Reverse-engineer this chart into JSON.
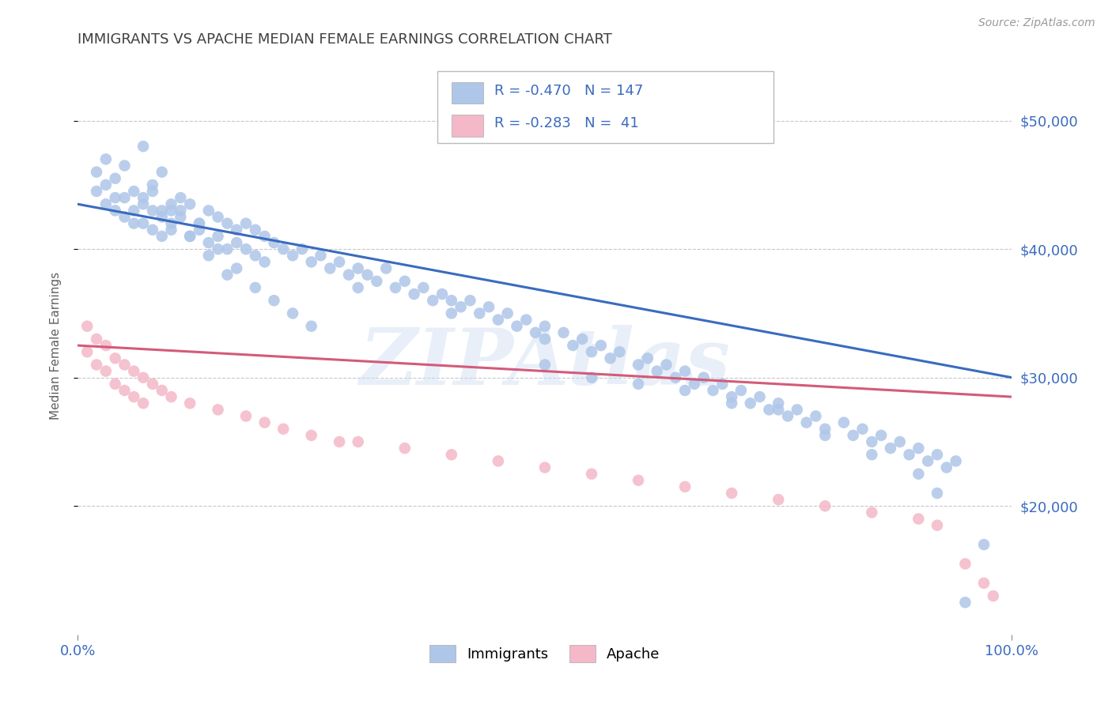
{
  "title": "IMMIGRANTS VS APACHE MEDIAN FEMALE EARNINGS CORRELATION CHART",
  "source": "Source: ZipAtlas.com",
  "ylabel": "Median Female Earnings",
  "xlim": [
    0,
    1.0
  ],
  "ylim": [
    10000,
    55000
  ],
  "yticks": [
    20000,
    30000,
    40000,
    50000
  ],
  "ytick_labels": [
    "$20,000",
    "$30,000",
    "$40,000",
    "$50,000"
  ],
  "xtick_labels": [
    "0.0%",
    "100.0%"
  ],
  "legend_labels": [
    "Immigrants",
    "Apache"
  ],
  "blue_R": -0.47,
  "blue_N": 147,
  "pink_R": -0.283,
  "pink_N": 41,
  "blue_color": "#aec6e8",
  "pink_color": "#f4b8c8",
  "blue_line_color": "#3a6bbf",
  "pink_line_color": "#d45a7a",
  "watermark": "ZIPAtlas",
  "background_color": "#ffffff",
  "grid_color": "#c8c8c8",
  "title_color": "#404040",
  "axis_label_color": "#606060",
  "tick_label_color_blue": "#3a6bbf",
  "blue_scatter_x": [
    0.02,
    0.02,
    0.03,
    0.03,
    0.03,
    0.04,
    0.04,
    0.04,
    0.05,
    0.05,
    0.05,
    0.06,
    0.06,
    0.06,
    0.07,
    0.07,
    0.07,
    0.08,
    0.08,
    0.08,
    0.09,
    0.09,
    0.09,
    0.1,
    0.1,
    0.1,
    0.11,
    0.11,
    0.12,
    0.12,
    0.13,
    0.13,
    0.14,
    0.14,
    0.15,
    0.15,
    0.16,
    0.16,
    0.17,
    0.17,
    0.18,
    0.18,
    0.19,
    0.19,
    0.2,
    0.2,
    0.21,
    0.22,
    0.23,
    0.24,
    0.25,
    0.26,
    0.27,
    0.28,
    0.29,
    0.3,
    0.3,
    0.31,
    0.32,
    0.33,
    0.34,
    0.35,
    0.36,
    0.37,
    0.38,
    0.39,
    0.4,
    0.4,
    0.41,
    0.42,
    0.43,
    0.44,
    0.45,
    0.46,
    0.47,
    0.48,
    0.49,
    0.5,
    0.5,
    0.52,
    0.53,
    0.54,
    0.55,
    0.56,
    0.57,
    0.58,
    0.6,
    0.61,
    0.62,
    0.63,
    0.64,
    0.65,
    0.66,
    0.67,
    0.68,
    0.69,
    0.7,
    0.71,
    0.72,
    0.73,
    0.74,
    0.75,
    0.76,
    0.77,
    0.78,
    0.79,
    0.8,
    0.82,
    0.83,
    0.84,
    0.85,
    0.86,
    0.87,
    0.88,
    0.89,
    0.9,
    0.91,
    0.92,
    0.93,
    0.94,
    0.07,
    0.09,
    0.11,
    0.13,
    0.15,
    0.17,
    0.19,
    0.21,
    0.23,
    0.25,
    0.08,
    0.1,
    0.12,
    0.14,
    0.16,
    0.5,
    0.55,
    0.6,
    0.65,
    0.7,
    0.75,
    0.8,
    0.85,
    0.9,
    0.92,
    0.95,
    0.97
  ],
  "blue_scatter_y": [
    44500,
    46000,
    43500,
    45000,
    47000,
    44000,
    45500,
    43000,
    42500,
    44000,
    46500,
    43000,
    44500,
    42000,
    43500,
    42000,
    44000,
    43000,
    41500,
    44500,
    42500,
    43000,
    41000,
    43500,
    42000,
    41500,
    43000,
    42500,
    41000,
    43500,
    42000,
    41500,
    43000,
    40500,
    42500,
    41000,
    42000,
    40000,
    41500,
    40500,
    42000,
    40000,
    41500,
    39500,
    41000,
    39000,
    40500,
    40000,
    39500,
    40000,
    39000,
    39500,
    38500,
    39000,
    38000,
    38500,
    37000,
    38000,
    37500,
    38500,
    37000,
    37500,
    36500,
    37000,
    36000,
    36500,
    36000,
    35000,
    35500,
    36000,
    35000,
    35500,
    34500,
    35000,
    34000,
    34500,
    33500,
    34000,
    33000,
    33500,
    32500,
    33000,
    32000,
    32500,
    31500,
    32000,
    31000,
    31500,
    30500,
    31000,
    30000,
    30500,
    29500,
    30000,
    29000,
    29500,
    28500,
    29000,
    28000,
    28500,
    27500,
    28000,
    27000,
    27500,
    26500,
    27000,
    26000,
    26500,
    25500,
    26000,
    25000,
    25500,
    24500,
    25000,
    24000,
    24500,
    23500,
    24000,
    23000,
    23500,
    48000,
    46000,
    44000,
    42000,
    40000,
    38500,
    37000,
    36000,
    35000,
    34000,
    45000,
    43000,
    41000,
    39500,
    38000,
    31000,
    30000,
    29500,
    29000,
    28000,
    27500,
    25500,
    24000,
    22500,
    21000,
    12500,
    17000
  ],
  "pink_scatter_x": [
    0.01,
    0.01,
    0.02,
    0.02,
    0.03,
    0.03,
    0.04,
    0.04,
    0.05,
    0.05,
    0.06,
    0.06,
    0.07,
    0.07,
    0.08,
    0.09,
    0.1,
    0.12,
    0.15,
    0.18,
    0.2,
    0.22,
    0.25,
    0.28,
    0.3,
    0.35,
    0.4,
    0.45,
    0.5,
    0.55,
    0.6,
    0.65,
    0.7,
    0.75,
    0.8,
    0.85,
    0.9,
    0.92,
    0.95,
    0.97,
    0.98
  ],
  "pink_scatter_y": [
    34000,
    32000,
    33000,
    31000,
    32500,
    30500,
    31500,
    29500,
    31000,
    29000,
    30500,
    28500,
    30000,
    28000,
    29500,
    29000,
    28500,
    28000,
    27500,
    27000,
    26500,
    26000,
    25500,
    25000,
    25000,
    24500,
    24000,
    23500,
    23000,
    22500,
    22000,
    21500,
    21000,
    20500,
    20000,
    19500,
    19000,
    18500,
    15500,
    14000,
    13000
  ],
  "blue_trend_x": [
    0.0,
    1.0
  ],
  "blue_trend_y": [
    43500,
    30000
  ],
  "pink_trend_x": [
    0.0,
    1.0
  ],
  "pink_trend_y": [
    32500,
    28500
  ]
}
